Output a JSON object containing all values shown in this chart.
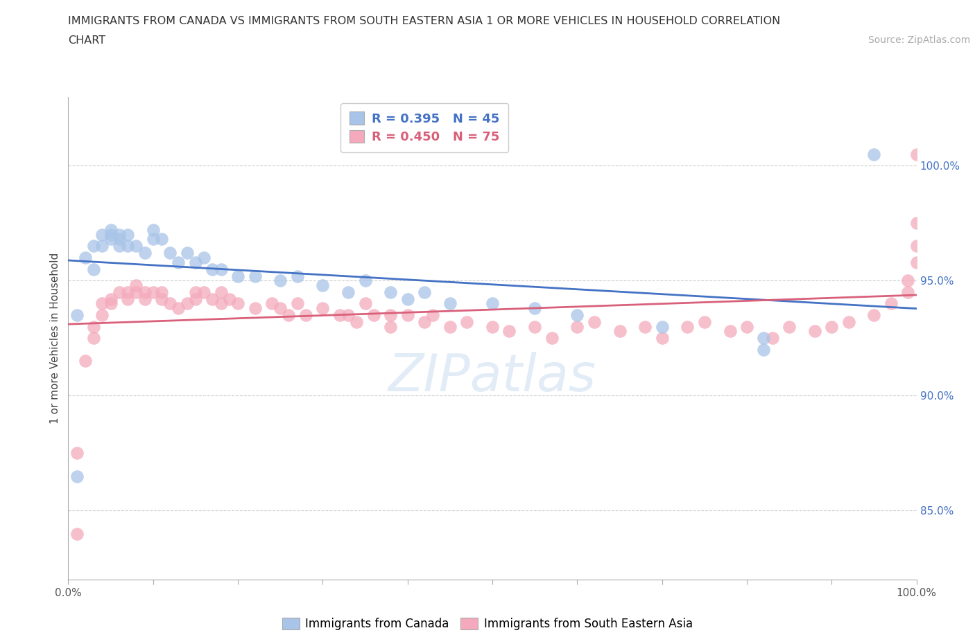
{
  "title_line1": "IMMIGRANTS FROM CANADA VS IMMIGRANTS FROM SOUTH EASTERN ASIA 1 OR MORE VEHICLES IN HOUSEHOLD CORRELATION",
  "title_line2": "CHART",
  "source_text": "Source: ZipAtlas.com",
  "ylabel": "1 or more Vehicles in Household",
  "xlim": [
    0,
    100
  ],
  "ylim": [
    82,
    103
  ],
  "legend_labels": [
    "Immigrants from Canada",
    "Immigrants from South Eastern Asia"
  ],
  "legend_R": [
    0.395,
    0.45
  ],
  "legend_N": [
    45,
    75
  ],
  "blue_color": "#A8C4E8",
  "pink_color": "#F4AABC",
  "blue_line_color": "#4472C4",
  "pink_line_color": "#D9607A",
  "ytick_vals": [
    85,
    90,
    95,
    100
  ],
  "ytick_labels": [
    "85.0%",
    "90.0%",
    "95.0%",
    "100.0%"
  ],
  "xtick_vals": [
    0,
    10,
    20,
    30,
    40,
    50,
    60,
    70,
    80,
    90,
    100
  ],
  "canada_x": [
    1,
    1,
    2,
    3,
    3,
    4,
    4,
    5,
    5,
    5,
    6,
    6,
    6,
    7,
    7,
    8,
    9,
    10,
    10,
    11,
    12,
    13,
    14,
    15,
    16,
    17,
    18,
    20,
    22,
    25,
    27,
    30,
    33,
    35,
    38,
    40,
    42,
    45,
    50,
    55,
    60,
    70,
    82,
    82,
    95
  ],
  "canada_y": [
    93.5,
    86.5,
    96.0,
    95.5,
    96.5,
    96.5,
    97.0,
    96.8,
    97.0,
    97.2,
    96.5,
    97.0,
    96.8,
    96.5,
    97.0,
    96.5,
    96.2,
    97.2,
    96.8,
    96.8,
    96.2,
    95.8,
    96.2,
    95.8,
    96.0,
    95.5,
    95.5,
    95.2,
    95.2,
    95.0,
    95.2,
    94.8,
    94.5,
    95.0,
    94.5,
    94.2,
    94.5,
    94.0,
    94.0,
    93.8,
    93.5,
    93.0,
    92.5,
    92.0,
    100.5
  ],
  "sea_x": [
    1,
    1,
    2,
    3,
    3,
    4,
    4,
    5,
    5,
    6,
    7,
    7,
    8,
    8,
    9,
    9,
    10,
    11,
    11,
    12,
    13,
    14,
    15,
    15,
    16,
    17,
    18,
    18,
    19,
    20,
    22,
    24,
    25,
    26,
    27,
    28,
    30,
    32,
    33,
    34,
    35,
    36,
    38,
    38,
    40,
    42,
    43,
    45,
    47,
    50,
    52,
    55,
    57,
    60,
    62,
    65,
    68,
    70,
    73,
    75,
    78,
    80,
    83,
    85,
    88,
    90,
    92,
    95,
    97,
    99,
    99,
    100,
    100,
    100,
    100
  ],
  "sea_y": [
    84.0,
    87.5,
    91.5,
    92.5,
    93.0,
    93.5,
    94.0,
    94.2,
    94.0,
    94.5,
    94.5,
    94.2,
    94.5,
    94.8,
    94.5,
    94.2,
    94.5,
    94.2,
    94.5,
    94.0,
    93.8,
    94.0,
    94.2,
    94.5,
    94.5,
    94.2,
    94.5,
    94.0,
    94.2,
    94.0,
    93.8,
    94.0,
    93.8,
    93.5,
    94.0,
    93.5,
    93.8,
    93.5,
    93.5,
    93.2,
    94.0,
    93.5,
    93.0,
    93.5,
    93.5,
    93.2,
    93.5,
    93.0,
    93.2,
    93.0,
    92.8,
    93.0,
    92.5,
    93.0,
    93.2,
    92.8,
    93.0,
    92.5,
    93.0,
    93.2,
    92.8,
    93.0,
    92.5,
    93.0,
    92.8,
    93.0,
    93.2,
    93.5,
    94.0,
    94.5,
    95.0,
    95.8,
    96.5,
    97.5,
    100.5
  ]
}
